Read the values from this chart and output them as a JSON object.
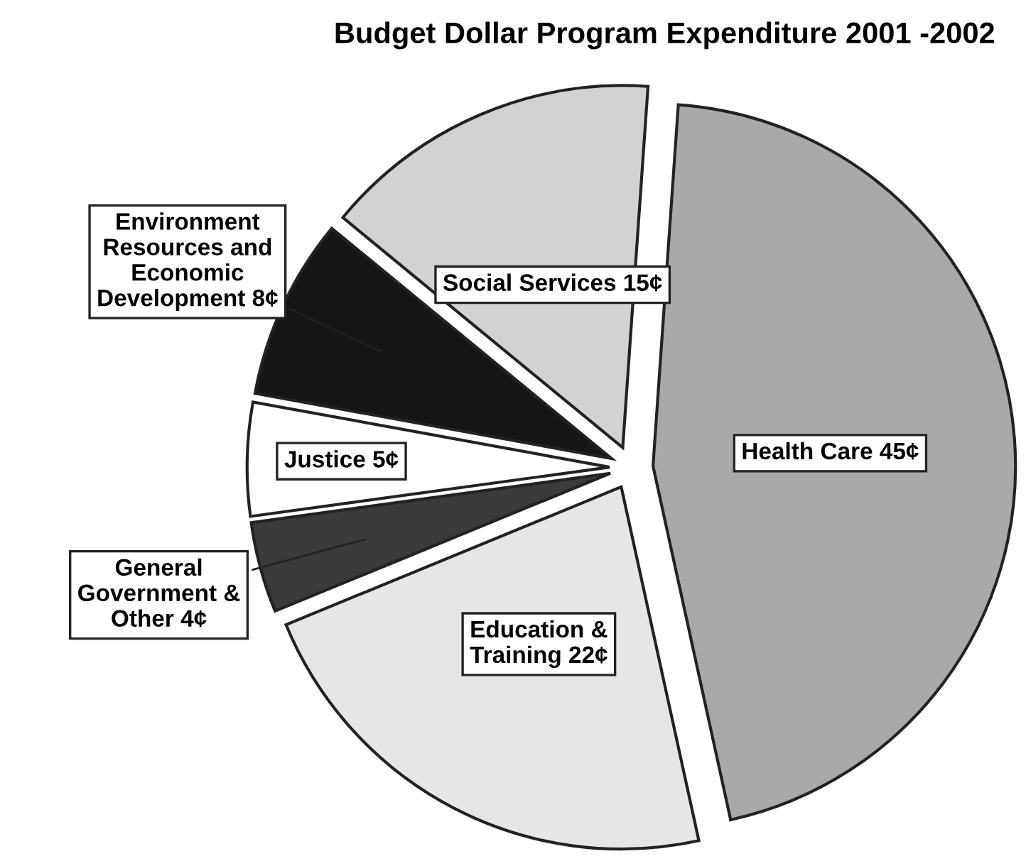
{
  "chart_data": {
    "type": "pie",
    "title": "Budget Dollar Program Expenditure 2001 -2002",
    "categories": [
      "Health Care",
      "Education &\nTraining",
      "General\nGovernment &\nOther",
      "Justice",
      "Environment\nResources and\nEconomic\nDevelopment",
      "Social Services"
    ],
    "values": [
      45,
      22,
      4,
      5,
      8,
      15
    ],
    "value_labels": [
      "45¢",
      "22¢",
      "4¢",
      "5¢",
      "8¢",
      "15¢"
    ],
    "colors": [
      "#a9a9a9",
      "#e6e6e6",
      "#3a3a3a",
      "#ffffff",
      "#161616",
      "#d2d2d2"
    ],
    "legend": false
  }
}
